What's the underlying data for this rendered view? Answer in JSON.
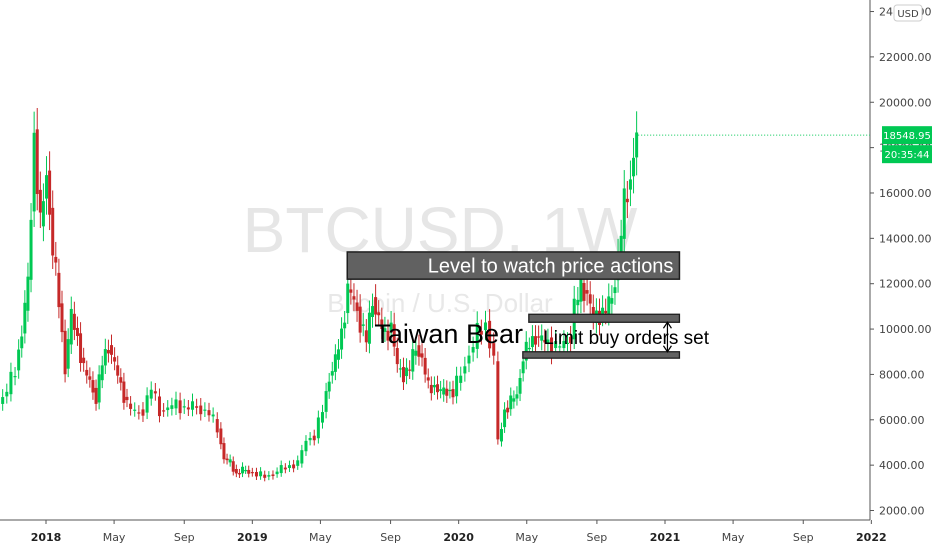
{
  "chart_data": {
    "type": "candlestick",
    "symbol": "BTCUSD",
    "interval": "1W",
    "watermark_title": "BTCUSD, 1W",
    "watermark_subtitle": "Bitcoin / U.S. Dollar",
    "currency_button": "USD",
    "y_axis": {
      "ticks": [
        "24000.00",
        "22000.00",
        "20000.00",
        "18000.00",
        "16000.00",
        "14000.00",
        "12000.00",
        "10000.00",
        "8000.00",
        "6000.00",
        "4000.00",
        "2000.00"
      ],
      "tick_values": [
        24000,
        22000,
        20000,
        18000,
        16000,
        14000,
        12000,
        10000,
        8000,
        6000,
        4000,
        2000
      ],
      "range": [
        700,
        24200
      ]
    },
    "x_axis": {
      "labels": [
        {
          "text": "2018",
          "year": true,
          "t": 2018.0
        },
        {
          "text": "May",
          "year": false,
          "t": 2018.33
        },
        {
          "text": "Sep",
          "year": false,
          "t": 2018.67
        },
        {
          "text": "2019",
          "year": true,
          "t": 2019.0
        },
        {
          "text": "May",
          "year": false,
          "t": 2019.33
        },
        {
          "text": "Sep",
          "year": false,
          "t": 2019.67
        },
        {
          "text": "2020",
          "year": true,
          "t": 2020.0
        },
        {
          "text": "May",
          "year": false,
          "t": 2020.33
        },
        {
          "text": "Sep",
          "year": false,
          "t": 2020.67
        },
        {
          "text": "2021",
          "year": true,
          "t": 2021.0
        },
        {
          "text": "May",
          "year": false,
          "t": 2021.33
        },
        {
          "text": "Sep",
          "year": false,
          "t": 2021.67
        },
        {
          "text": "2022",
          "year": true,
          "t": 2022.0
        }
      ]
    },
    "last_price": {
      "value": 18548.95,
      "label": "18548.95",
      "countdown": "20:35:44",
      "color": "#00c853"
    },
    "colors": {
      "up": "#26a69a",
      "up_bright": "#00c853",
      "down": "#c62828",
      "zone_fill": "#616161",
      "zone_border": "#1e1e1e"
    },
    "series_close": [
      {
        "t": 2017.62,
        "v": 4200
      },
      {
        "t": 2017.66,
        "v": 4500
      },
      {
        "t": 2017.7,
        "v": 5800
      },
      {
        "t": 2017.74,
        "v": 6100
      },
      {
        "t": 2017.78,
        "v": 6700
      },
      {
        "t": 2017.82,
        "v": 7300
      },
      {
        "t": 2017.86,
        "v": 8200
      },
      {
        "t": 2017.89,
        "v": 9900
      },
      {
        "t": 2017.92,
        "v": 12000
      },
      {
        "t": 2017.95,
        "v": 18500
      },
      {
        "t": 2017.98,
        "v": 14500
      },
      {
        "t": 2018.01,
        "v": 16900
      },
      {
        "t": 2018.04,
        "v": 13500
      },
      {
        "t": 2018.07,
        "v": 11200
      },
      {
        "t": 2018.1,
        "v": 8300
      },
      {
        "t": 2018.13,
        "v": 10600
      },
      {
        "t": 2018.16,
        "v": 9600
      },
      {
        "t": 2018.19,
        "v": 8200
      },
      {
        "t": 2018.22,
        "v": 7700
      },
      {
        "t": 2018.25,
        "v": 6900
      },
      {
        "t": 2018.28,
        "v": 8500
      },
      {
        "t": 2018.31,
        "v": 9300
      },
      {
        "t": 2018.34,
        "v": 8400
      },
      {
        "t": 2018.37,
        "v": 7500
      },
      {
        "t": 2018.4,
        "v": 6700
      },
      {
        "t": 2018.44,
        "v": 6300
      },
      {
        "t": 2018.48,
        "v": 6400
      },
      {
        "t": 2018.52,
        "v": 7400
      },
      {
        "t": 2018.56,
        "v": 6400
      },
      {
        "t": 2018.6,
        "v": 6500
      },
      {
        "t": 2018.64,
        "v": 6700
      },
      {
        "t": 2018.68,
        "v": 6500
      },
      {
        "t": 2018.72,
        "v": 6600
      },
      {
        "t": 2018.76,
        "v": 6450
      },
      {
        "t": 2018.8,
        "v": 6300
      },
      {
        "t": 2018.84,
        "v": 5600
      },
      {
        "t": 2018.87,
        "v": 4300
      },
      {
        "t": 2018.9,
        "v": 4100
      },
      {
        "t": 2018.93,
        "v": 3600
      },
      {
        "t": 2018.96,
        "v": 3800
      },
      {
        "t": 2018.99,
        "v": 3700
      },
      {
        "t": 2019.03,
        "v": 3600
      },
      {
        "t": 2019.07,
        "v": 3500
      },
      {
        "t": 2019.11,
        "v": 3600
      },
      {
        "t": 2019.15,
        "v": 3850
      },
      {
        "t": 2019.19,
        "v": 3950
      },
      {
        "t": 2019.23,
        "v": 4100
      },
      {
        "t": 2019.27,
        "v": 5100
      },
      {
        "t": 2019.31,
        "v": 5300
      },
      {
        "t": 2019.35,
        "v": 6400
      },
      {
        "t": 2019.38,
        "v": 7900
      },
      {
        "t": 2019.41,
        "v": 8600
      },
      {
        "t": 2019.44,
        "v": 9800
      },
      {
        "t": 2019.47,
        "v": 11800
      },
      {
        "t": 2019.5,
        "v": 11200
      },
      {
        "t": 2019.53,
        "v": 10300
      },
      {
        "t": 2019.56,
        "v": 9500
      },
      {
        "t": 2019.59,
        "v": 11300
      },
      {
        "t": 2019.62,
        "v": 10400
      },
      {
        "t": 2019.65,
        "v": 9700
      },
      {
        "t": 2019.68,
        "v": 10200
      },
      {
        "t": 2019.71,
        "v": 8300
      },
      {
        "t": 2019.74,
        "v": 8000
      },
      {
        "t": 2019.77,
        "v": 8300
      },
      {
        "t": 2019.8,
        "v": 9200
      },
      {
        "t": 2019.83,
        "v": 8700
      },
      {
        "t": 2019.86,
        "v": 7400
      },
      {
        "t": 2019.89,
        "v": 7500
      },
      {
        "t": 2019.92,
        "v": 7200
      },
      {
        "t": 2019.95,
        "v": 7300
      },
      {
        "t": 2019.98,
        "v": 7200
      },
      {
        "t": 2020.02,
        "v": 8000
      },
      {
        "t": 2020.06,
        "v": 8900
      },
      {
        "t": 2020.1,
        "v": 9800
      },
      {
        "t": 2020.14,
        "v": 10200
      },
      {
        "t": 2020.18,
        "v": 8700
      },
      {
        "t": 2020.2,
        "v": 5000
      },
      {
        "t": 2020.23,
        "v": 6400
      },
      {
        "t": 2020.26,
        "v": 6800
      },
      {
        "t": 2020.29,
        "v": 7100
      },
      {
        "t": 2020.32,
        "v": 8800
      },
      {
        "t": 2020.35,
        "v": 9300
      },
      {
        "t": 2020.38,
        "v": 9700
      },
      {
        "t": 2020.41,
        "v": 9500
      },
      {
        "t": 2020.44,
        "v": 9400
      },
      {
        "t": 2020.48,
        "v": 9200
      },
      {
        "t": 2020.52,
        "v": 9300
      },
      {
        "t": 2020.55,
        "v": 9700
      },
      {
        "t": 2020.57,
        "v": 11000
      },
      {
        "t": 2020.6,
        "v": 11800
      },
      {
        "t": 2020.63,
        "v": 11600
      },
      {
        "t": 2020.66,
        "v": 10400
      },
      {
        "t": 2020.69,
        "v": 10700
      },
      {
        "t": 2020.72,
        "v": 10800
      },
      {
        "t": 2020.75,
        "v": 11400
      },
      {
        "t": 2020.78,
        "v": 13100
      },
      {
        "t": 2020.81,
        "v": 15500
      },
      {
        "t": 2020.84,
        "v": 16700
      },
      {
        "t": 2020.87,
        "v": 18549
      }
    ],
    "annotations": [
      {
        "text": "Level to watch price actions",
        "kind": "zone",
        "y_from": 12200,
        "y_to": 13400,
        "t_from": 2019.46,
        "t_to": 2021.07
      },
      {
        "text": "Limit buy orders set",
        "kind": "range",
        "y_from": 9000,
        "y_to": 10300,
        "t_from": 2020.34,
        "t_to": 2021.07
      },
      {
        "text": "Taiwan Bear",
        "kind": "label"
      }
    ]
  }
}
